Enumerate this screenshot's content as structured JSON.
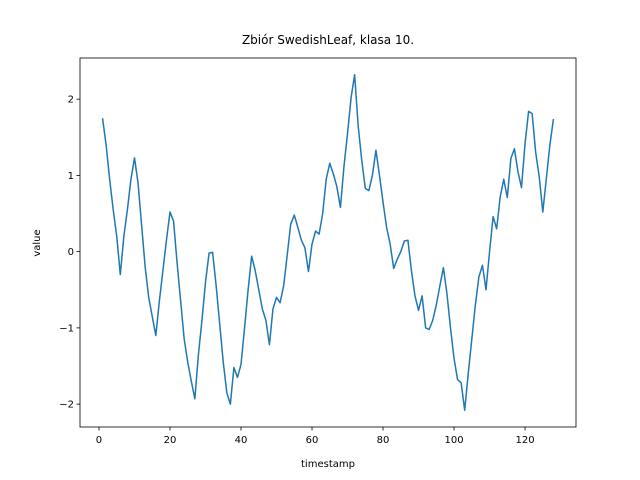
{
  "chart_data": {
    "type": "line",
    "title": "Zbiór SwedishLeaf, klasa 10.",
    "x_label": "timestamp",
    "y_label": "value",
    "x": [
      1,
      2,
      3,
      4,
      5,
      6,
      7,
      8,
      9,
      10,
      11,
      12,
      13,
      14,
      15,
      16,
      17,
      18,
      19,
      20,
      21,
      22,
      23,
      24,
      25,
      26,
      27,
      28,
      29,
      30,
      31,
      32,
      33,
      34,
      35,
      36,
      37,
      38,
      39,
      40,
      41,
      42,
      43,
      44,
      45,
      46,
      47,
      48,
      49,
      50,
      51,
      52,
      53,
      54,
      55,
      56,
      57,
      58,
      59,
      60,
      61,
      62,
      63,
      64,
      65,
      66,
      67,
      68,
      69,
      70,
      71,
      72,
      73,
      74,
      75,
      76,
      77,
      78,
      79,
      80,
      81,
      82,
      83,
      84,
      85,
      86,
      87,
      88,
      89,
      90,
      91,
      92,
      93,
      94,
      95,
      96,
      97,
      98,
      99,
      100,
      101,
      102,
      103,
      104,
      105,
      106,
      107,
      108,
      109,
      110,
      111,
      112,
      113,
      114,
      115,
      116,
      117,
      118,
      119,
      120,
      121,
      122,
      123,
      124,
      125,
      126,
      127,
      128
    ],
    "series": [
      {
        "name": "value",
        "color": "#1f77b4",
        "values": [
          1.75,
          1.4,
          0.95,
          0.55,
          0.2,
          -0.3,
          0.2,
          0.55,
          0.95,
          1.23,
          0.9,
          0.35,
          -0.2,
          -0.6,
          -0.85,
          -1.1,
          -0.65,
          -0.25,
          0.15,
          0.52,
          0.4,
          -0.15,
          -0.65,
          -1.15,
          -1.45,
          -1.7,
          -1.93,
          -1.35,
          -0.9,
          -0.4,
          -0.02,
          -0.01,
          -0.45,
          -0.95,
          -1.45,
          -1.85,
          -2.0,
          -1.52,
          -1.65,
          -1.48,
          -1.0,
          -0.5,
          -0.06,
          -0.25,
          -0.5,
          -0.75,
          -0.9,
          -1.22,
          -0.75,
          -0.6,
          -0.67,
          -0.45,
          -0.05,
          0.36,
          0.48,
          0.32,
          0.15,
          0.05,
          -0.26,
          0.1,
          0.27,
          0.23,
          0.5,
          0.95,
          1.16,
          1.02,
          0.85,
          0.58,
          1.12,
          1.55,
          2.02,
          2.32,
          1.65,
          1.2,
          0.83,
          0.8,
          1.0,
          1.33,
          1.0,
          0.65,
          0.32,
          0.1,
          -0.22,
          -0.1,
          0.0,
          0.14,
          0.15,
          -0.25,
          -0.58,
          -0.77,
          -0.58,
          -1.0,
          -1.02,
          -0.9,
          -0.7,
          -0.45,
          -0.21,
          -0.55,
          -1.0,
          -1.4,
          -1.68,
          -1.72,
          -2.08,
          -1.6,
          -1.15,
          -0.7,
          -0.33,
          -0.18,
          -0.5,
          0.0,
          0.46,
          0.3,
          0.72,
          0.95,
          0.71,
          1.22,
          1.35,
          1.05,
          0.84,
          1.42,
          1.84,
          1.81,
          1.3,
          0.98,
          0.52,
          0.96,
          1.4,
          1.74
        ]
      }
    ],
    "xlim": [
      -5.35,
      134.35
    ],
    "xticks": [
      0,
      20,
      40,
      60,
      80,
      100,
      120
    ],
    "ylim": [
      -2.3,
      2.54
    ],
    "yticks": [
      {
        "value": -2,
        "label": "−2"
      },
      {
        "value": -1,
        "label": "−1"
      },
      0,
      1,
      2
    ]
  }
}
